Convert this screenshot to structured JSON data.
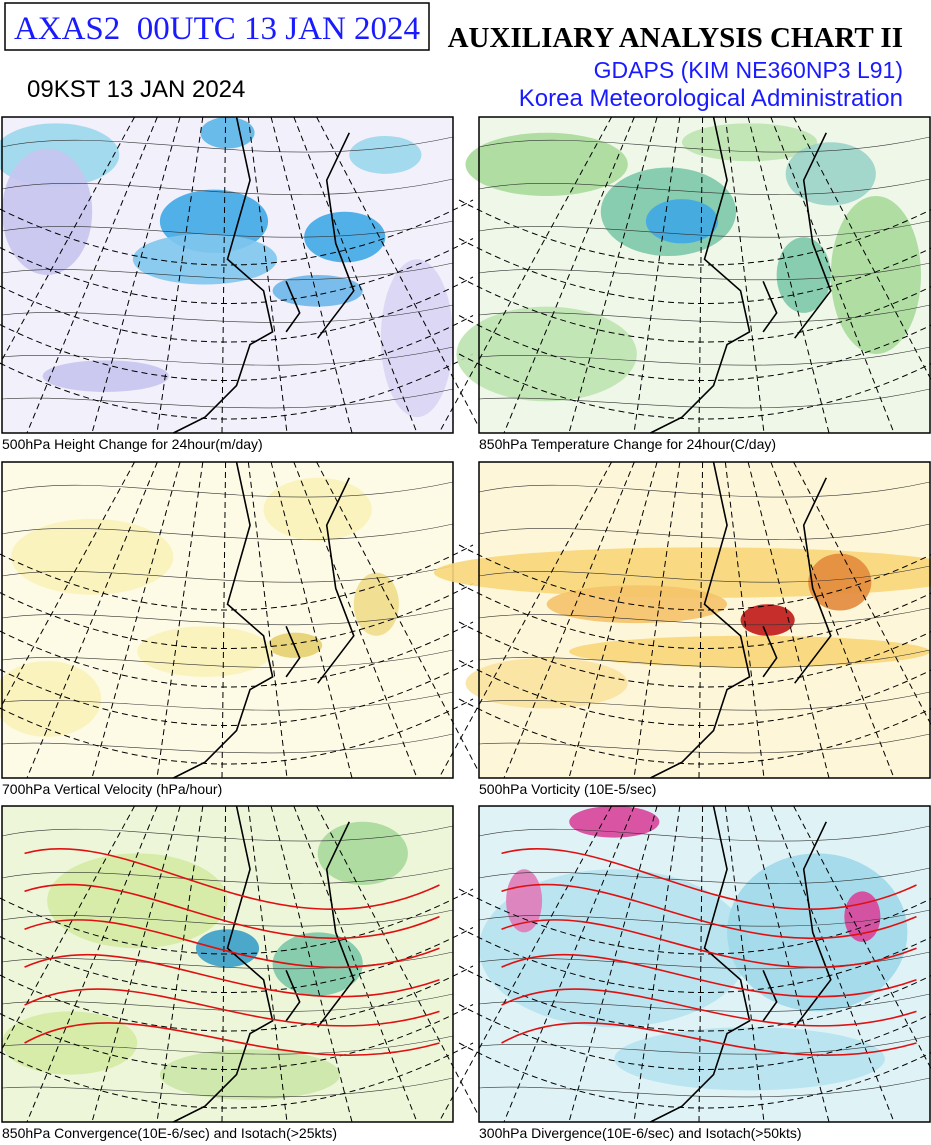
{
  "header": {
    "product": "AXAS2  00UTC 13 JAN 2024",
    "local_time": "09KST 13 JAN 2024",
    "title": "AUXILIARY ANALYSIS CHART II",
    "model": "GDAPS (KIM NE360NP3 L91)",
    "agency": "Korea Meteorological Administration"
  },
  "panels": [
    {
      "caption": "500hPa Height Change for 24hour(m/day)"
    },
    {
      "caption": "850hPa Temperature Change for 24hour(C/day)"
    },
    {
      "caption": "700hPa Vertical Velocity (hPa/hour)"
    },
    {
      "caption": "500hPa Vorticity (10E-5/sec)"
    },
    {
      "caption": "850hPa Convergence(10E-6/sec) and Isotach(>25kts)"
    },
    {
      "caption": "300hPa Divergence(10E-6/sec) and Isotach(>50kts)"
    }
  ]
}
